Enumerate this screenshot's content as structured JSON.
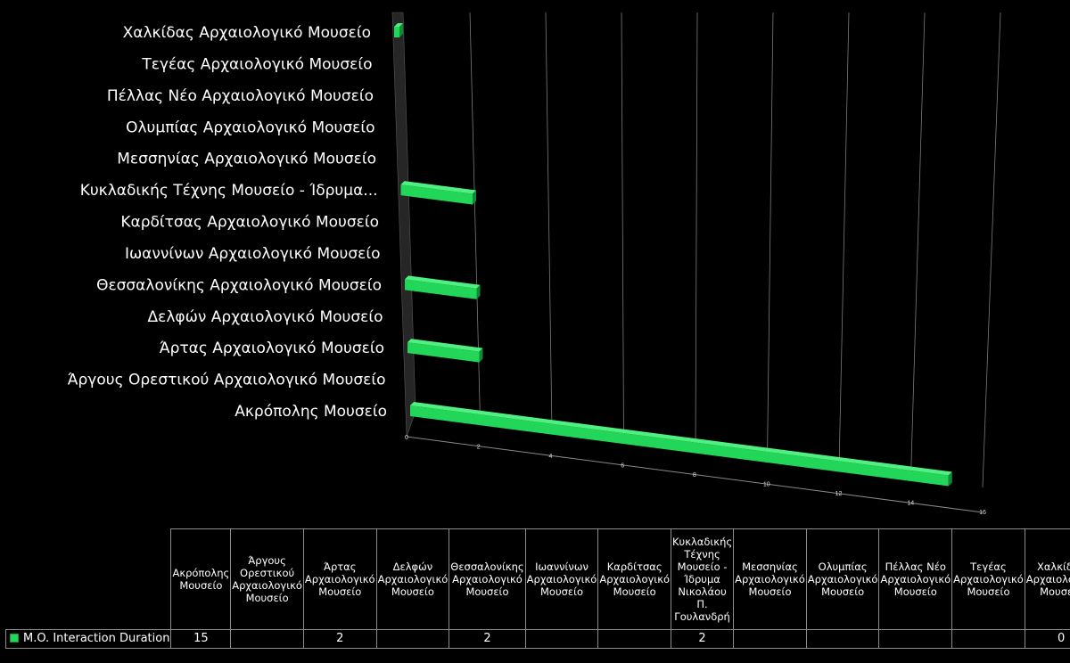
{
  "chart_data": {
    "type": "bar",
    "orientation": "horizontal",
    "style": "3d",
    "categories": [
      "Ακρόπολης Μουσείο",
      "Άργους Ορεστικού Αρχαιολογικό Μουσείο",
      "Άρτας Αρχαιολογικό Μουσείο",
      "Δελφών Αρχαιολογικό Μουσείο",
      "Θεσσαλονίκης Αρχαιολογικό Μουσείο",
      "Ιωαννίνων Αρχαιολογικό Μουσείο",
      "Καρδίτσας Αρχαιολογικό Μουσείο",
      "Κυκλαδικής Τέχνης Μουσείο - Ίδρυμα Νικολάου Π. Γουλανδρή",
      "Μεσσηνίας Αρχαιολογικό Μουσείο",
      "Ολυμπίας Αρχαιολογικό Μουσείο",
      "Πέλλας Νέο Αρχαιολογικό Μουσείο",
      "Τεγέας Αρχαιολογικό Μουσείο",
      "Χαλκίδας Αρχαιολογικό Μουσείο"
    ],
    "axis_labels_display": [
      "Ακρόπολης Μουσείο",
      "Άργους Ορεστικού Αρχαιολογικό Μουσείο",
      "Άρτας Αρχαιολογικό Μουσείο",
      "Δελφών Αρχαιολογικό Μουσείο",
      "Θεσσαλονίκης Αρχαιολογικό Μουσείο",
      "Ιωαννίνων Αρχαιολογικό Μουσείο",
      "Καρδίτσας Αρχαιολογικό Μουσείο",
      "Κυκλαδικής Τέχνης Μουσείο - Ίδρυμα...",
      "Μεσσηνίας Αρχαιολογικό Μουσείο",
      "Ολυμπίας Αρχαιολογικό Μουσείο",
      "Πέλλας Νέο Αρχαιολογικό Μουσείο",
      "Τεγέας Αρχαιολογικό Μουσείο",
      "Χαλκίδας Αρχαιολογικό Μουσείο"
    ],
    "series": [
      {
        "name": "M.O. Interaction Duration",
        "values": [
          15,
          null,
          2,
          null,
          2,
          null,
          null,
          2,
          null,
          null,
          null,
          null,
          0
        ]
      }
    ],
    "xlim": [
      0,
      16
    ],
    "xticks": [
      0,
      2,
      4,
      6,
      8,
      10,
      12,
      14,
      16
    ],
    "grid": true,
    "legend": "data-table",
    "colors": {
      "bar": "#22d659",
      "bar_top": "#4ff07f",
      "bar_side": "#0f8a36",
      "background": "#000000",
      "grid": "#7a7a7a"
    }
  },
  "data_table": {
    "header_labels": [
      "Ακρόπολης Μουσείο",
      "Άργους Ορεστικού Αρχαιολογικό Μουσείο",
      "Άρτας Αρχαιολογικό Μουσείο",
      "Δελφών Αρχαιολογικό Μουσείο",
      "Θεσσαλονίκης Αρχαιολογικό Μουσείο",
      "Ιωαννίνων Αρχαιολογικό Μουσείο",
      "Καρδίτσας Αρχαιολογικό Μουσείο",
      "Κυκλαδικής Τέχνης Μουσείο - Ίδρυμα Νικολάου Π. Γουλανδρή",
      "Μεσσηνίας Αρχαιολογικό Μουσείο",
      "Ολυμπίας Αρχαιολογικό Μουσείο",
      "Πέλλας Νέο Αρχαιολογικό Μουσείο",
      "Τεγέας Αρχαιολογικό Μουσείο",
      "Χαλκίδας Αρχαιολογικό Μουσείο"
    ],
    "series_label": "M.O. Interaction Duration",
    "values": [
      "15",
      "",
      "2",
      "",
      "2",
      "",
      "",
      "2",
      "",
      "",
      "",
      "",
      "0"
    ]
  }
}
